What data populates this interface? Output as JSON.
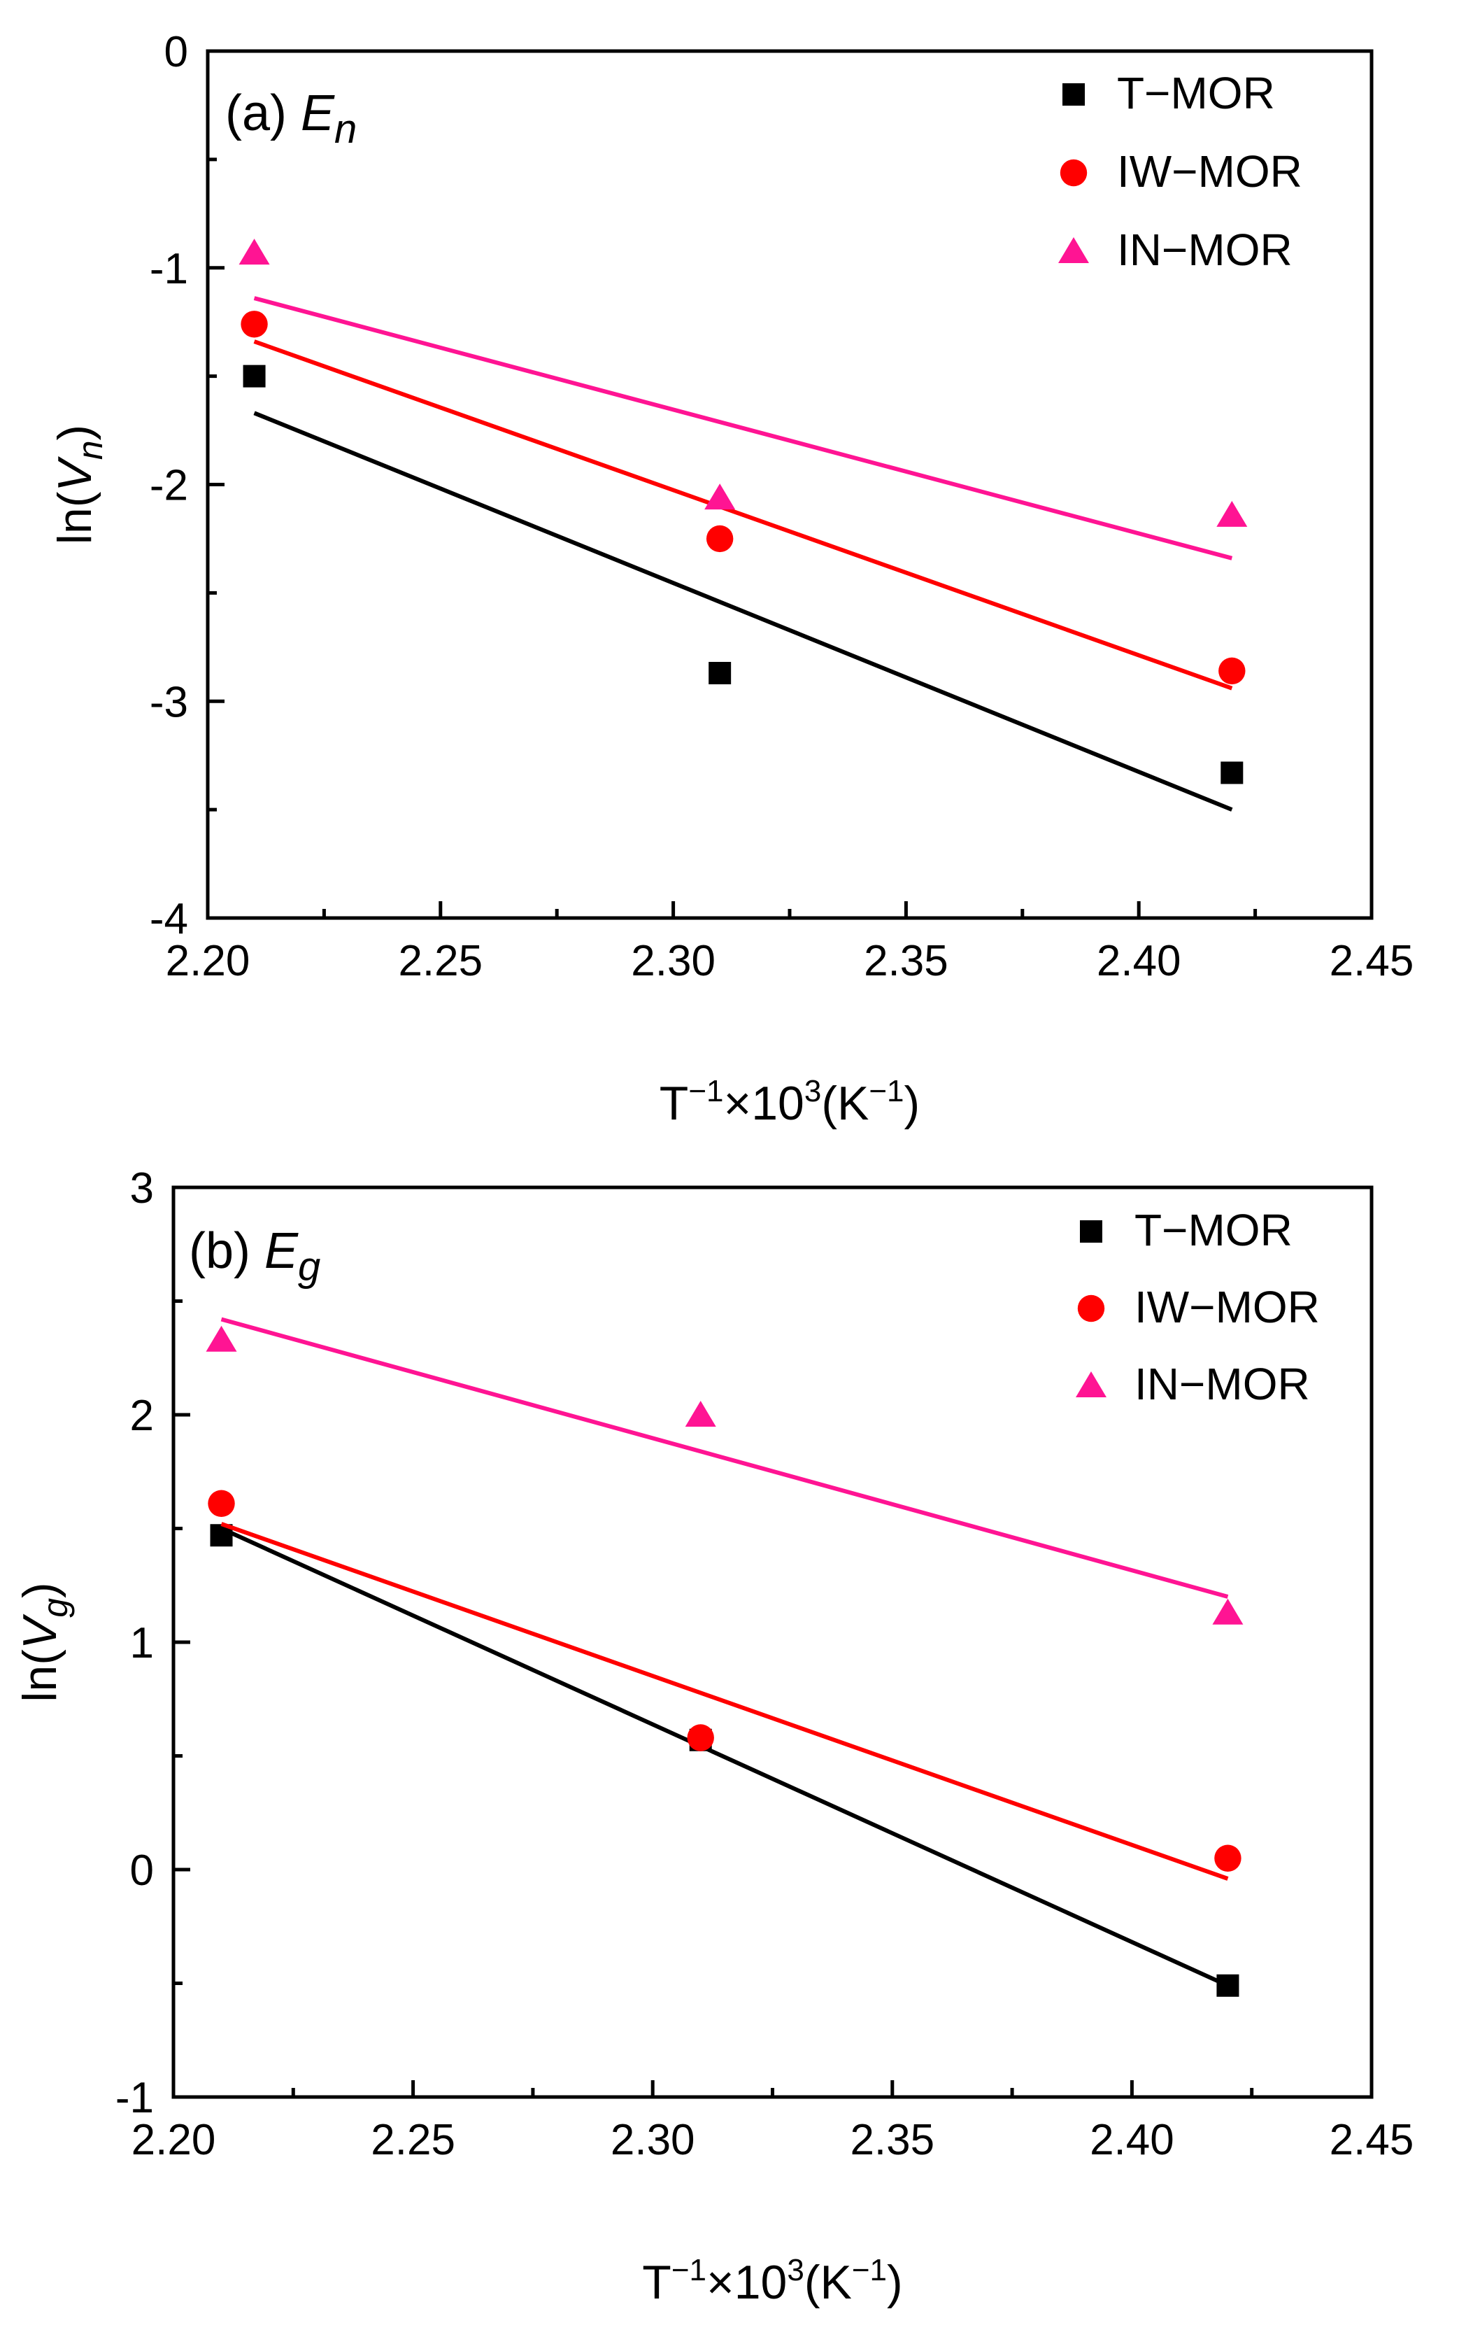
{
  "chart_data": [
    {
      "type": "scatter",
      "panel_label": "(a)",
      "title_symbol": "E",
      "title_subscript": "n",
      "xlabel": "",
      "ylabel": "",
      "ylabel_parts": {
        "pre": "ln(",
        "sym": "V",
        "sub": "n",
        "post": ")"
      },
      "xlabel_parts": {
        "base1": "T",
        "sup1": "−1",
        "mid": "×10",
        "sup2": "3",
        "mid2": "(K",
        "sup3": "−1",
        "post": ")"
      },
      "xlim": [
        2.2,
        2.45
      ],
      "ylim": [
        -4,
        0
      ],
      "xticks": [
        2.2,
        2.25,
        2.3,
        2.35,
        2.4,
        2.45
      ],
      "xtick_labels": [
        "2.20",
        "2.25",
        "2.30",
        "2.35",
        "2.40",
        "2.45"
      ],
      "yticks": [
        -4,
        -3,
        -2,
        -1,
        0
      ],
      "ytick_labels": [
        "-4",
        "-3",
        "-2",
        "-1",
        "0"
      ],
      "legend_position": "top-right",
      "series": [
        {
          "name": "T−MOR",
          "marker": "square",
          "color": "#000000",
          "x": [
            2.21,
            2.31,
            2.42
          ],
          "y": [
            -1.5,
            -2.87,
            -3.33
          ],
          "fit": {
            "x": [
              2.21,
              2.42
            ],
            "y": [
              -1.67,
              -3.5
            ]
          }
        },
        {
          "name": "IW−MOR",
          "marker": "circle",
          "color": "#ff0000",
          "x": [
            2.21,
            2.31,
            2.42
          ],
          "y": [
            -1.26,
            -2.25,
            -2.86
          ],
          "fit": {
            "x": [
              2.21,
              2.42
            ],
            "y": [
              -1.34,
              -2.94
            ]
          }
        },
        {
          "name": "IN−MOR",
          "marker": "triangle",
          "color": "#ff1493",
          "x": [
            2.21,
            2.31,
            2.42
          ],
          "y": [
            -0.93,
            -2.06,
            -2.14
          ],
          "fit": {
            "x": [
              2.21,
              2.42
            ],
            "y": [
              -1.14,
              -2.34
            ]
          }
        }
      ]
    },
    {
      "type": "scatter",
      "panel_label": "(b)",
      "title_symbol": "E",
      "title_subscript": "g",
      "xlabel": "",
      "ylabel": "",
      "ylabel_parts": {
        "pre": "ln(",
        "sym": "V",
        "sub": "g",
        "post": ")"
      },
      "xlabel_parts": {
        "base1": "T",
        "sup1": "−1",
        "mid": "×10",
        "sup2": "3",
        "mid2": "(K",
        "sup3": "−1",
        "post": ")"
      },
      "xlim": [
        2.2,
        2.45
      ],
      "ylim": [
        -1,
        3
      ],
      "xticks": [
        2.2,
        2.25,
        2.3,
        2.35,
        2.4,
        2.45
      ],
      "xtick_labels": [
        "2.20",
        "2.25",
        "2.30",
        "2.35",
        "2.40",
        "2.45"
      ],
      "yticks": [
        -1,
        0,
        1,
        2,
        3
      ],
      "ytick_labels": [
        "-1",
        "0",
        "1",
        "2",
        "3"
      ],
      "legend_position": "top-right",
      "series": [
        {
          "name": "T−MOR",
          "marker": "square",
          "color": "#000000",
          "x": [
            2.21,
            2.31,
            2.42
          ],
          "y": [
            1.47,
            0.57,
            -0.51
          ],
          "fit": {
            "x": [
              2.21,
              2.42
            ],
            "y": [
              1.5,
              -0.51
            ]
          }
        },
        {
          "name": "IW−MOR",
          "marker": "circle",
          "color": "#ff0000",
          "x": [
            2.21,
            2.31,
            2.42
          ],
          "y": [
            1.61,
            0.58,
            0.05
          ],
          "fit": {
            "x": [
              2.21,
              2.42
            ],
            "y": [
              1.52,
              -0.04
            ]
          }
        },
        {
          "name": "IN−MOR",
          "marker": "triangle",
          "color": "#ff1493",
          "x": [
            2.21,
            2.31,
            2.42
          ],
          "y": [
            2.33,
            2.0,
            1.13
          ],
          "fit": {
            "x": [
              2.21,
              2.42
            ],
            "y": [
              2.42,
              1.2
            ]
          }
        }
      ]
    }
  ]
}
